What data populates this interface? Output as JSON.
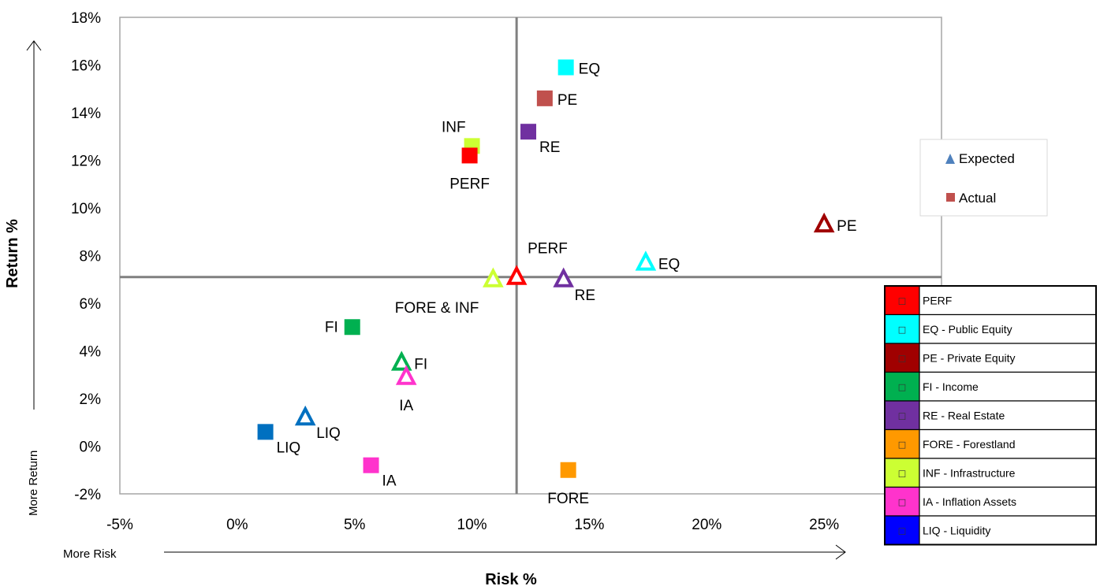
{
  "chart_data": {
    "type": "scatter",
    "xlabel": "Risk %",
    "ylabel": "Return %",
    "x_note": "More Risk",
    "y_note": "More Return",
    "xlim": [
      -5,
      30
    ],
    "ylim": [
      -2,
      18
    ],
    "x_ticks": [
      "-5%",
      "0%",
      "5%",
      "10%",
      "15%",
      "20%",
      "25%"
    ],
    "x_tick_values": [
      -5,
      0,
      5,
      10,
      15,
      20,
      25
    ],
    "y_ticks": [
      "-2%",
      "0%",
      "2%",
      "4%",
      "6%",
      "8%",
      "10%",
      "12%",
      "14%",
      "16%",
      "18%"
    ],
    "y_tick_values": [
      -2,
      0,
      2,
      4,
      6,
      8,
      10,
      12,
      14,
      16,
      18
    ],
    "crosshair": {
      "x": 11.9,
      "y": 7.1
    },
    "legend": {
      "position": "right",
      "entries": [
        {
          "label": "Expected",
          "marker": "triangle",
          "color": "#4F81BD"
        },
        {
          "label": "Actual",
          "marker": "square",
          "color": "#C0504D"
        }
      ]
    },
    "color_key": [
      {
        "label": "PERF",
        "color": "#FF0000"
      },
      {
        "label": "EQ - Public Equity",
        "color": "#00FFFF"
      },
      {
        "label": "PE - Private Equity",
        "color": "#A00000"
      },
      {
        "label": "FI - Income",
        "color": "#00B050"
      },
      {
        "label": "RE - Real Estate",
        "color": "#7030A0"
      },
      {
        "label": "FORE - Forestland",
        "color": "#FF9900"
      },
      {
        "label": "INF - Infrastructure",
        "color": "#CCFF33"
      },
      {
        "label": "IA - Inflation Assets",
        "color": "#FF33CC"
      },
      {
        "label": "LIQ - Liquidity",
        "color": "#0000FF"
      }
    ],
    "key_glyph": "□",
    "series": [
      {
        "name": "Actual",
        "marker": "square",
        "points": [
          {
            "label": "EQ",
            "x": 14.0,
            "y": 15.9,
            "color": "#00FFFF",
            "label_pos": "right"
          },
          {
            "label": "PE",
            "x": 13.1,
            "y": 14.6,
            "color": "#C0504D",
            "label_pos": "right"
          },
          {
            "label": "RE",
            "x": 12.4,
            "y": 13.2,
            "color": "#7030A0",
            "label_pos": "below-right"
          },
          {
            "label": "INF",
            "x": 10.0,
            "y": 12.6,
            "color": "#CCFF33",
            "label_pos": "above-left"
          },
          {
            "label": "PERF",
            "x": 9.9,
            "y": 12.2,
            "color": "#FF0000",
            "label_pos": "below"
          },
          {
            "label": "FI",
            "x": 4.9,
            "y": 5.0,
            "color": "#00B050",
            "label_pos": "left"
          },
          {
            "label": "LIQ",
            "x": 1.2,
            "y": 0.6,
            "color": "#0070C0",
            "label_pos": "below-right"
          },
          {
            "label": "IA",
            "x": 5.7,
            "y": -0.8,
            "color": "#FF33CC",
            "label_pos": "below-right"
          },
          {
            "label": "FORE",
            "x": 14.1,
            "y": -1.0,
            "color": "#FF9900",
            "label_pos": "below"
          }
        ]
      },
      {
        "name": "Expected",
        "marker": "triangle",
        "points": [
          {
            "label": "PE",
            "x": 25.0,
            "y": 9.3,
            "color": "#A00000",
            "label_pos": "right"
          },
          {
            "label": "EQ",
            "x": 17.4,
            "y": 7.7,
            "color": "#00FFFF",
            "label_pos": "right"
          },
          {
            "label": "PERF",
            "x": 11.9,
            "y": 7.1,
            "color": "#FF0000",
            "label_pos": "above-right"
          },
          {
            "label": "RE",
            "x": 13.9,
            "y": 7.0,
            "color": "#7030A0",
            "label_pos": "below-right"
          },
          {
            "label": "FORE & INF",
            "x": 10.9,
            "y": 7.0,
            "color": "#CCFF33",
            "label_pos": "below-left"
          },
          {
            "label": "FI",
            "x": 7.0,
            "y": 3.5,
            "color": "#00B050",
            "label_pos": "right"
          },
          {
            "label": "IA",
            "x": 7.2,
            "y": 2.9,
            "color": "#FF33CC",
            "label_pos": "below"
          },
          {
            "label": "LIQ",
            "x": 2.9,
            "y": 1.2,
            "color": "#0070C0",
            "label_pos": "below-right"
          }
        ]
      }
    ]
  }
}
